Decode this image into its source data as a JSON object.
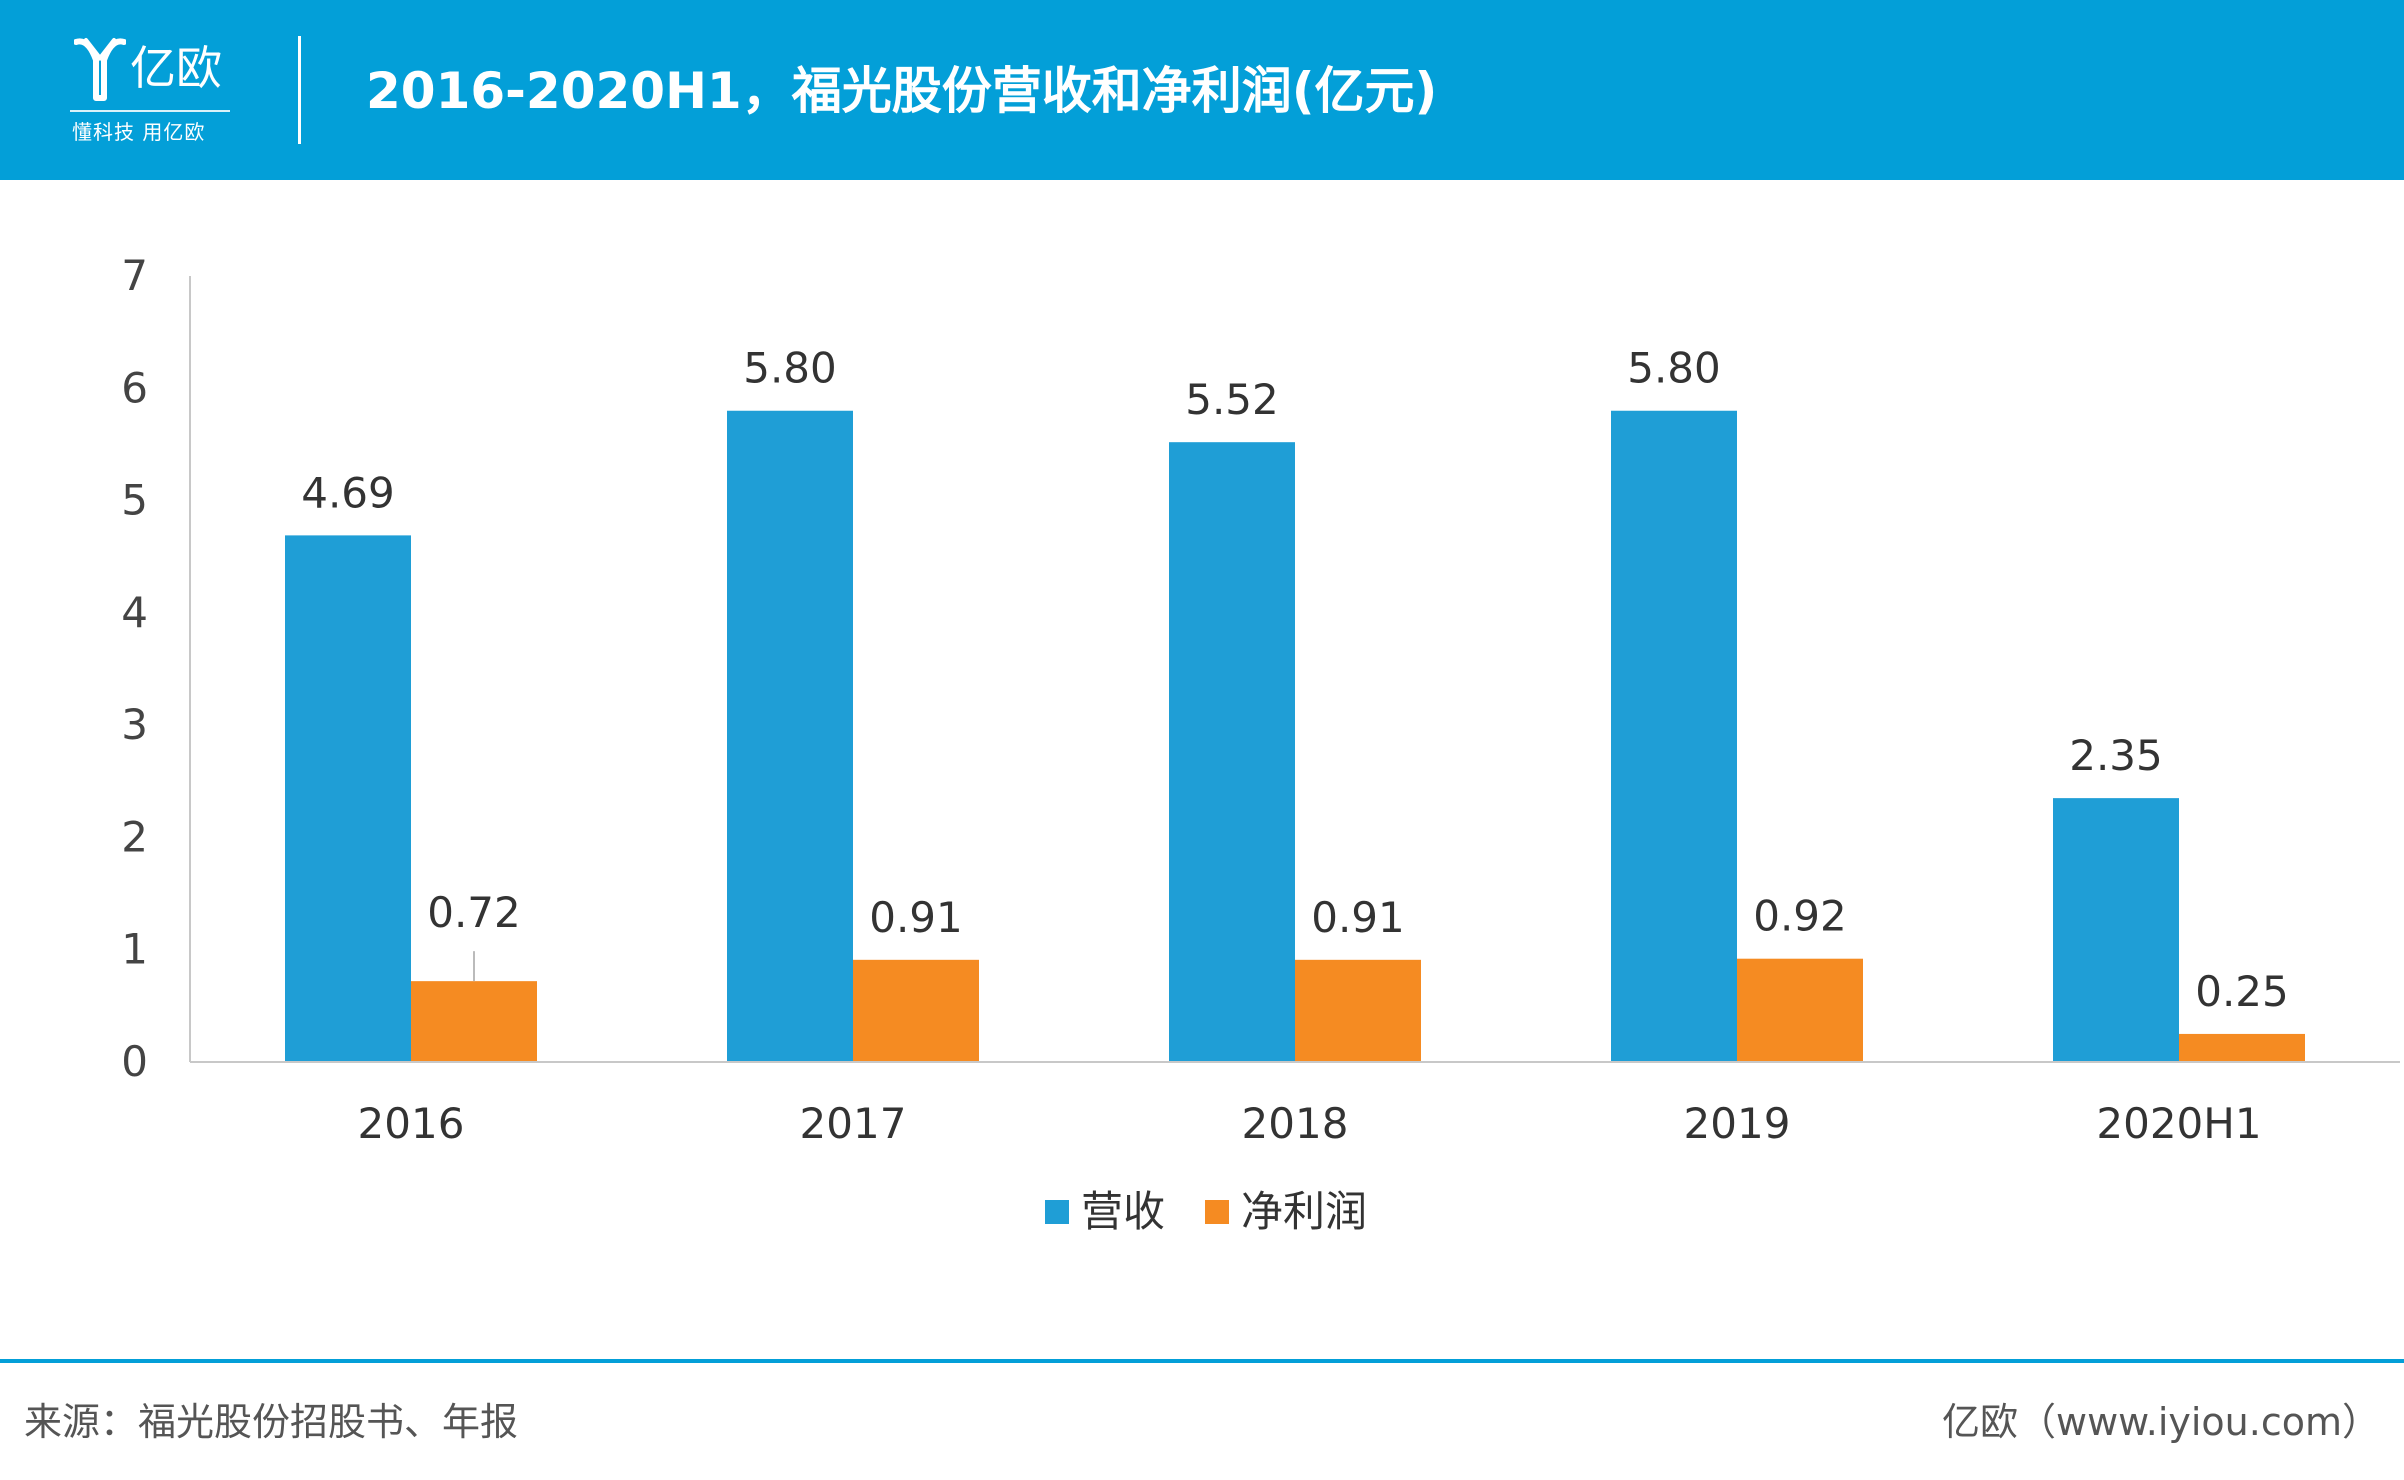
{
  "header": {
    "logo_text": "亿欧",
    "logo_slogan": "懂科技 用亿欧",
    "title": "2016-2020H1，福光股份营收和净利润(亿元)"
  },
  "colors": {
    "header_bg": "#039fd8",
    "revenue": "#1f9ed6",
    "net_profit": "#f58b22"
  },
  "chart_data": {
    "type": "bar",
    "categories": [
      "2016",
      "2017",
      "2018",
      "2019",
      "2020H1"
    ],
    "series": [
      {
        "name": "营收",
        "values": [
          4.69,
          5.8,
          5.52,
          5.8,
          2.35
        ],
        "labels": [
          "4.69",
          "5.80",
          "5.52",
          "5.80",
          "2.35"
        ]
      },
      {
        "name": "净利润",
        "values": [
          0.72,
          0.91,
          0.91,
          0.92,
          0.25
        ],
        "labels": [
          "0.72",
          "0.91",
          "0.91",
          "0.92",
          "0.25"
        ]
      }
    ],
    "ylim": [
      0,
      7
    ],
    "yticks": [
      "0",
      "1",
      "2",
      "3",
      "4",
      "5",
      "6",
      "7"
    ],
    "grid": false,
    "legend": "bottom-center"
  },
  "footer": {
    "source": "来源：福光股份招股书、年报",
    "credit": "亿欧（www.iyiou.com）"
  }
}
